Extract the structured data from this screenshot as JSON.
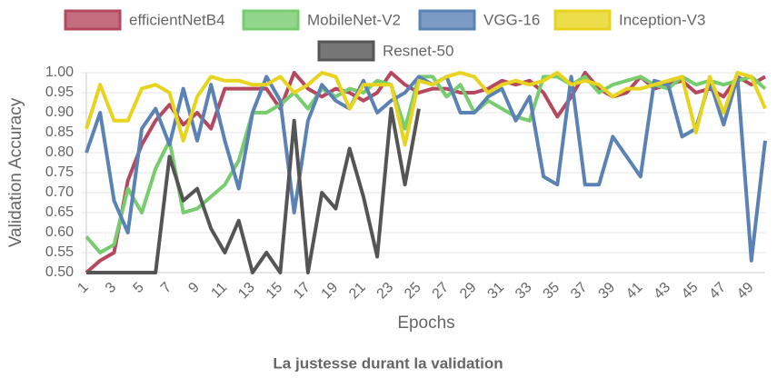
{
  "chart_data": {
    "type": "line",
    "title": "La justesse durant la validation",
    "x_label": "Epochs",
    "y_label": "Validation Accuracy",
    "categories": [
      1,
      null,
      3,
      null,
      5,
      null,
      7,
      null,
      9,
      null,
      11,
      null,
      13,
      null,
      15,
      null,
      17,
      null,
      19,
      null,
      21,
      null,
      23,
      null,
      25,
      null,
      27,
      null,
      29,
      null,
      31,
      null,
      33,
      null,
      35,
      null,
      37,
      null,
      39,
      null,
      41,
      null,
      43,
      null,
      45,
      null,
      47,
      null,
      49,
      null
    ],
    "ylim": [
      0.5,
      1.0
    ],
    "yticks": [
      {
        "value": 0.5,
        "label": "0.50"
      },
      {
        "value": 0.55,
        "label": "0.55"
      },
      {
        "value": 0.6,
        "label": "0.60"
      },
      {
        "value": 0.65,
        "label": "0.65"
      },
      {
        "value": 0.7,
        "label": "0.70"
      },
      {
        "value": 0.75,
        "label": "0.75"
      },
      {
        "value": 0.8,
        "label": "0.80"
      },
      {
        "value": 0.85,
        "label": "0.85"
      },
      {
        "value": 0.9,
        "label": "0.90"
      },
      {
        "value": 0.95,
        "label": "0.95"
      },
      {
        "value": 1.0,
        "label": "1.00"
      }
    ],
    "grid": true,
    "legend": "top",
    "series": [
      {
        "name": "efficientNetB4",
        "color": "#b5485f",
        "values": [
          0.5,
          0.53,
          0.55,
          0.73,
          0.82,
          0.88,
          0.92,
          0.87,
          0.9,
          0.86,
          0.96,
          0.96,
          0.96,
          0.96,
          0.91,
          1.0,
          0.96,
          0.94,
          0.96,
          0.95,
          0.93,
          0.95,
          1.0,
          0.97,
          0.95,
          0.96,
          0.96,
          0.95,
          0.95,
          0.96,
          0.98,
          0.97,
          0.98,
          0.95,
          0.89,
          0.94,
          1.0,
          0.96,
          0.94,
          0.95,
          0.99,
          0.96,
          0.97,
          0.98,
          0.95,
          0.96,
          0.94,
          0.99,
          0.97,
          0.99
        ]
      },
      {
        "name": "MobileNet-V2",
        "color": "#77cc6e",
        "values": [
          0.59,
          0.55,
          0.57,
          0.71,
          0.65,
          0.76,
          0.83,
          0.65,
          0.66,
          0.69,
          0.72,
          0.78,
          0.9,
          0.9,
          0.92,
          0.95,
          0.91,
          0.96,
          0.94,
          0.96,
          0.95,
          0.98,
          0.97,
          0.86,
          0.99,
          0.99,
          0.94,
          0.97,
          0.9,
          0.93,
          0.91,
          0.89,
          0.88,
          0.99,
          0.99,
          0.97,
          0.99,
          0.95,
          0.97,
          0.98,
          0.99,
          0.97,
          0.96,
          0.99,
          0.97,
          0.98,
          0.97,
          0.98,
          0.99,
          0.96
        ]
      },
      {
        "name": "VGG-16",
        "color": "#5b82b5",
        "values": [
          0.8,
          0.9,
          0.68,
          0.6,
          0.86,
          0.91,
          0.82,
          0.96,
          0.83,
          0.97,
          0.83,
          0.71,
          0.9,
          0.99,
          0.93,
          0.65,
          0.88,
          0.97,
          0.93,
          0.91,
          0.98,
          0.9,
          0.93,
          0.95,
          0.99,
          0.97,
          0.99,
          0.9,
          0.9,
          0.94,
          0.96,
          0.88,
          0.94,
          0.74,
          0.72,
          0.99,
          0.72,
          0.72,
          0.84,
          0.79,
          0.74,
          0.98,
          0.97,
          0.84,
          0.86,
          0.98,
          0.87,
          0.99,
          0.53,
          0.83
        ]
      },
      {
        "name": "Inception-V3",
        "color": "#e8d41e",
        "values": [
          0.86,
          0.97,
          0.88,
          0.88,
          0.96,
          0.97,
          0.95,
          0.83,
          0.94,
          0.99,
          0.98,
          0.98,
          0.97,
          0.97,
          0.99,
          0.95,
          0.97,
          1.0,
          0.99,
          0.91,
          0.97,
          0.97,
          0.97,
          0.82,
          0.98,
          0.97,
          0.99,
          1.0,
          0.99,
          0.95,
          0.97,
          0.98,
          0.97,
          0.98,
          1.0,
          0.97,
          0.98,
          0.97,
          0.94,
          0.96,
          0.96,
          0.97,
          0.98,
          0.99,
          0.85,
          0.99,
          0.9,
          1.0,
          0.99,
          0.91
        ]
      },
      {
        "name": "Resnet-50",
        "color": "#555555",
        "values": [
          0.5,
          0.5,
          0.5,
          0.5,
          0.5,
          0.5,
          0.79,
          0.68,
          0.71,
          0.61,
          0.55,
          0.63,
          0.5,
          0.55,
          0.5,
          0.88,
          0.5,
          0.7,
          0.66,
          0.81,
          0.69,
          0.54,
          0.91,
          0.72,
          0.91,
          null,
          null,
          null,
          null,
          null,
          null,
          null,
          null,
          null,
          null,
          null,
          null,
          null,
          null,
          null,
          null,
          null,
          null,
          null,
          null,
          null,
          null,
          null,
          null,
          null
        ]
      }
    ]
  }
}
